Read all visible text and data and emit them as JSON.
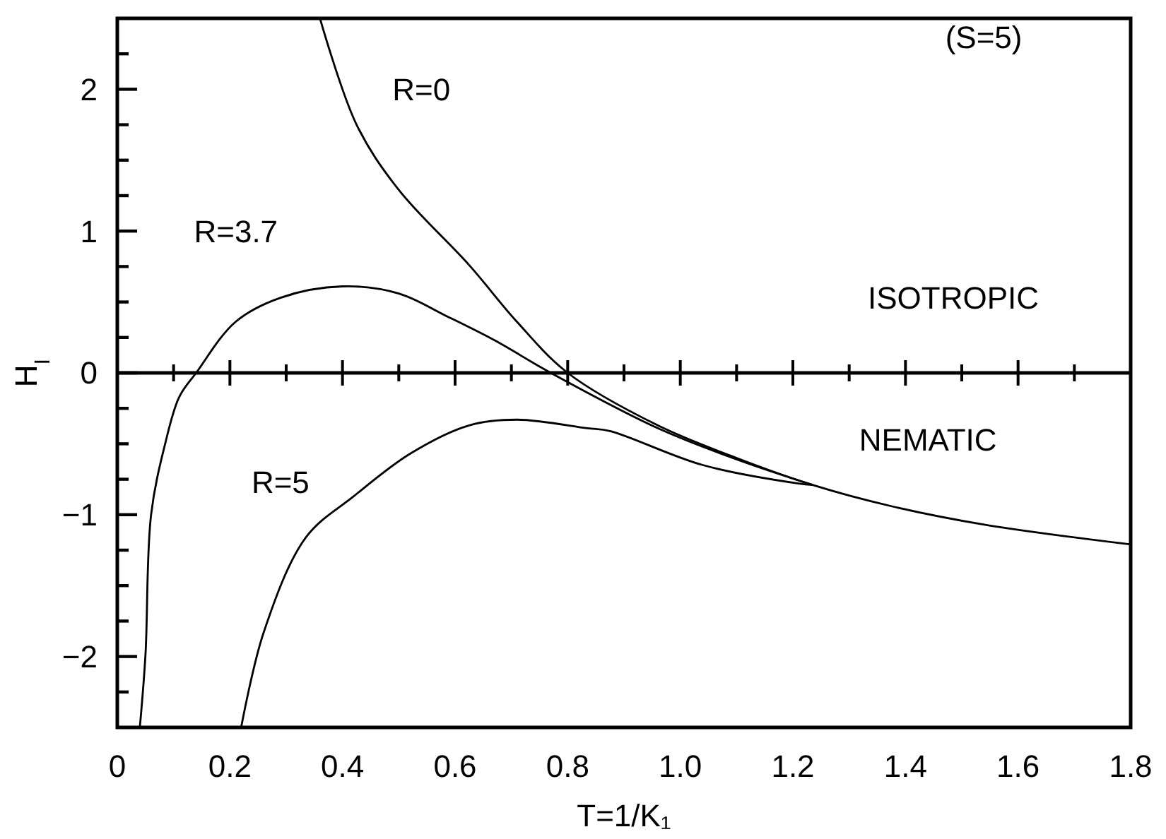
{
  "chart_data": {
    "type": "line",
    "xlabel": "T=1/K₁",
    "ylabel": "H$_{I}$",
    "xlim": [
      0,
      1.8
    ],
    "ylim": [
      -2.5,
      2.5
    ],
    "xticks": [
      0,
      {
        "value": 0.1,
        "label": null
      },
      0.2,
      {
        "value": 0.3,
        "label": null
      },
      0.4,
      {
        "value": 0.5,
        "label": null
      },
      0.6,
      {
        "value": 0.7,
        "label": null
      },
      0.8,
      {
        "value": 0.9,
        "label": null
      },
      {
        "value": 1,
        "label": "1.0"
      },
      {
        "value": 1.1,
        "label": null
      },
      1.2,
      {
        "value": 1.3,
        "label": null
      },
      1.4,
      {
        "value": 1.5,
        "label": null
      },
      1.6,
      {
        "value": 1.7,
        "label": null
      },
      1.8
    ],
    "yticks": [
      -2,
      {
        "value": -2.25,
        "label": null
      },
      {
        "value": -1.75,
        "label": null
      },
      {
        "value": -1.5,
        "label": null
      },
      {
        "value": -1.25,
        "label": null
      },
      -1,
      {
        "value": -0.75,
        "label": null
      },
      {
        "value": -0.5,
        "label": null
      },
      {
        "value": -0.25,
        "label": null
      },
      0,
      {
        "value": 0.25,
        "label": null
      },
      {
        "value": 0.5,
        "label": null
      },
      {
        "value": 0.75,
        "label": null
      },
      1,
      {
        "value": 1.25,
        "label": null
      },
      {
        "value": 1.5,
        "label": null
      },
      {
        "value": 1.75,
        "label": null
      },
      2,
      {
        "value": 2.25,
        "label": null
      }
    ],
    "ref_lines": [
      {
        "axis": "y",
        "value": 0,
        "color": "#000000"
      }
    ],
    "series": [
      {
        "name": "R=0",
        "color": "#000000",
        "x": [
          0.36,
          0.425,
          0.5,
          0.625,
          0.71,
          0.8,
          0.96,
          1.1,
          1.235,
          1.375,
          1.54,
          1.8
        ],
        "values": [
          2.5,
          1.75,
          1.29,
          0.76,
          0.36,
          0,
          -0.37,
          -0.6,
          -0.79,
          -0.94,
          -1.07,
          -1.21
        ]
      },
      {
        "name": "R=3.7",
        "color": "#000000",
        "x": [
          0.04,
          0.05,
          0.06,
          0.085,
          0.11,
          0.14,
          0.21,
          0.29,
          0.4,
          0.5,
          0.585,
          0.67,
          0.77,
          0.96,
          1.1,
          1.235
        ],
        "values": [
          -2.5,
          -1.99,
          -1.0,
          -0.5,
          -0.17,
          0,
          0.36,
          0.53,
          0.61,
          0.56,
          0.4,
          0.23,
          0,
          -0.39,
          -0.61,
          -0.79
        ]
      },
      {
        "name": "R=5",
        "color": "#000000",
        "x": [
          0.22,
          0.26,
          0.335,
          0.42,
          0.52,
          0.625,
          0.71,
          0.835,
          0.875,
          1.04,
          1.21,
          1.235
        ],
        "values": [
          -2.5,
          -1.83,
          -1.16,
          -0.87,
          -0.57,
          -0.37,
          -0.33,
          -0.39,
          -0.41,
          -0.65,
          -0.78,
          -0.79
        ]
      }
    ],
    "annotations": [
      "(S=5)",
      "ISOTROPIC",
      "NEMATIC"
    ]
  }
}
